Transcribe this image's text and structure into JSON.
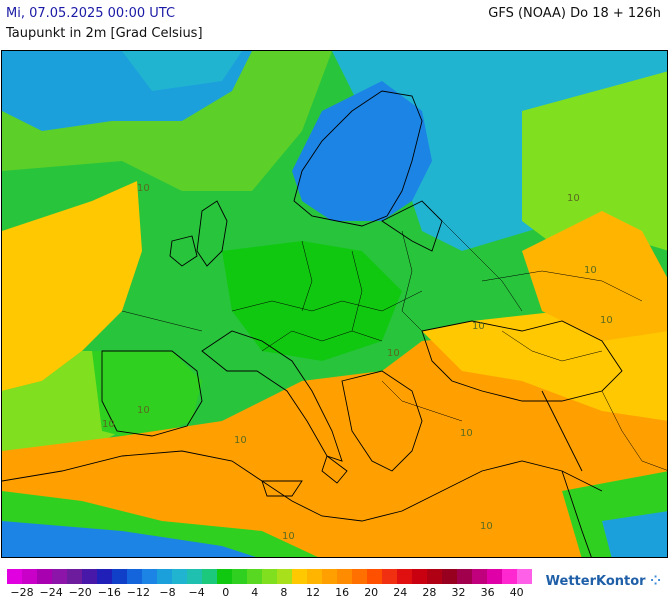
{
  "header": {
    "datetime": "Mi, 07.05.2025 00:00 UTC",
    "parameter": "Taupunkt in 2m [Grad Celsius]",
    "model_run": "GFS (NOAA) Do 18 + 126h"
  },
  "map": {
    "contour_labels": [
      "10",
      "10",
      "10",
      "10",
      "10",
      "10",
      "10",
      "10",
      "10",
      "10",
      "10",
      "10"
    ]
  },
  "legend": {
    "colors": [
      "#e000e0",
      "#c800c8",
      "#a800b0",
      "#8c14a8",
      "#6c1c9c",
      "#4818a8",
      "#2020b8",
      "#1040c8",
      "#1464dc",
      "#1c84e4",
      "#1ca0dc",
      "#20b4d0",
      "#20c0b0",
      "#1cc87c",
      "#10c810",
      "#30d020",
      "#58d820",
      "#80e020",
      "#a8e01c",
      "#ffc800",
      "#ffb400",
      "#ffa000",
      "#ff8c00",
      "#ff7000",
      "#ff5000",
      "#f03010",
      "#e01010",
      "#c80010",
      "#b00014",
      "#980020",
      "#a0004c",
      "#c0007c",
      "#e000a8",
      "#ff28d0",
      "#ff60e8"
    ],
    "tick_labels": [
      "−28",
      "−24",
      "−20",
      "−16",
      "−12",
      "−8",
      "−4",
      "0",
      "4",
      "8",
      "12",
      "16",
      "20",
      "24",
      "28",
      "32",
      "36",
      "40"
    ]
  },
  "logo": {
    "text": "WetterKontor",
    "mark": "⁘"
  }
}
